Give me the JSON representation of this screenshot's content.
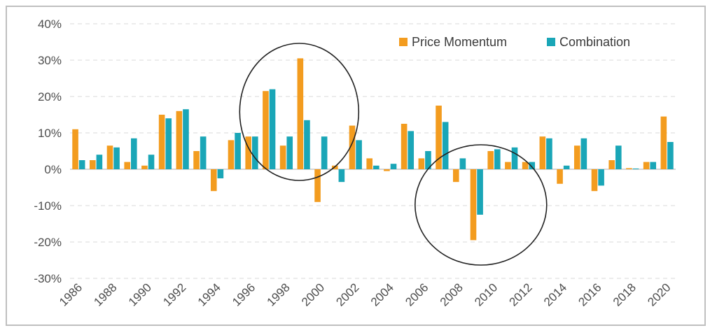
{
  "chart_data": {
    "type": "bar",
    "title": "",
    "xlabel": "",
    "ylabel": "",
    "ylim": [
      -30,
      40
    ],
    "yticks": [
      -30,
      -20,
      -10,
      0,
      10,
      20,
      30,
      40
    ],
    "ytick_labels": [
      "-30%",
      "-20%",
      "-10%",
      "0%",
      "10%",
      "20%",
      "30%",
      "40%"
    ],
    "grid": true,
    "legend_position": "top-right",
    "categories": [
      "1986",
      "1987",
      "1988",
      "1989",
      "1990",
      "1991",
      "1992",
      "1993",
      "1994",
      "1995",
      "1996",
      "1997",
      "1998",
      "1999",
      "2000",
      "2001",
      "2002",
      "2003",
      "2004",
      "2005",
      "2006",
      "2007",
      "2008",
      "2009",
      "2010",
      "2011",
      "2012",
      "2013",
      "2014",
      "2015",
      "2016",
      "2017",
      "2018",
      "2019",
      "2020"
    ],
    "xtick_labels": [
      "1986",
      "1988",
      "1990",
      "1992",
      "1994",
      "1996",
      "1998",
      "2000",
      "2002",
      "2004",
      "2006",
      "2008",
      "2010",
      "2012",
      "2014",
      "2016",
      "2018",
      "2020"
    ],
    "series": [
      {
        "name": "Price Momentum",
        "color": "#f39c1f",
        "values": [
          11,
          2.5,
          6.5,
          2,
          1,
          15,
          16,
          5,
          -6,
          8,
          9,
          21.5,
          6.5,
          30.5,
          -9,
          1,
          12,
          3,
          -0.5,
          12.5,
          3,
          17.5,
          -3.5,
          -19.5,
          5,
          2,
          2,
          9,
          -4,
          6.5,
          -6,
          2.5,
          0.3,
          2,
          14.5
        ]
      },
      {
        "name": "Combination",
        "color": "#1aa6b7",
        "values": [
          2.5,
          4,
          6,
          8.5,
          4,
          14,
          16.5,
          9,
          -2.5,
          10,
          9,
          22,
          9,
          13.5,
          9,
          -3.5,
          8,
          1,
          1.5,
          10.5,
          5,
          13,
          3,
          -12.5,
          5.5,
          6,
          2,
          8.5,
          1,
          8.5,
          -4.5,
          6.5,
          0.2,
          2,
          7.5
        ]
      }
    ],
    "annotations": [
      {
        "type": "ellipse",
        "label": "circled region 1996-2001"
      },
      {
        "type": "ellipse",
        "label": "circled region 2007-2011"
      }
    ]
  }
}
